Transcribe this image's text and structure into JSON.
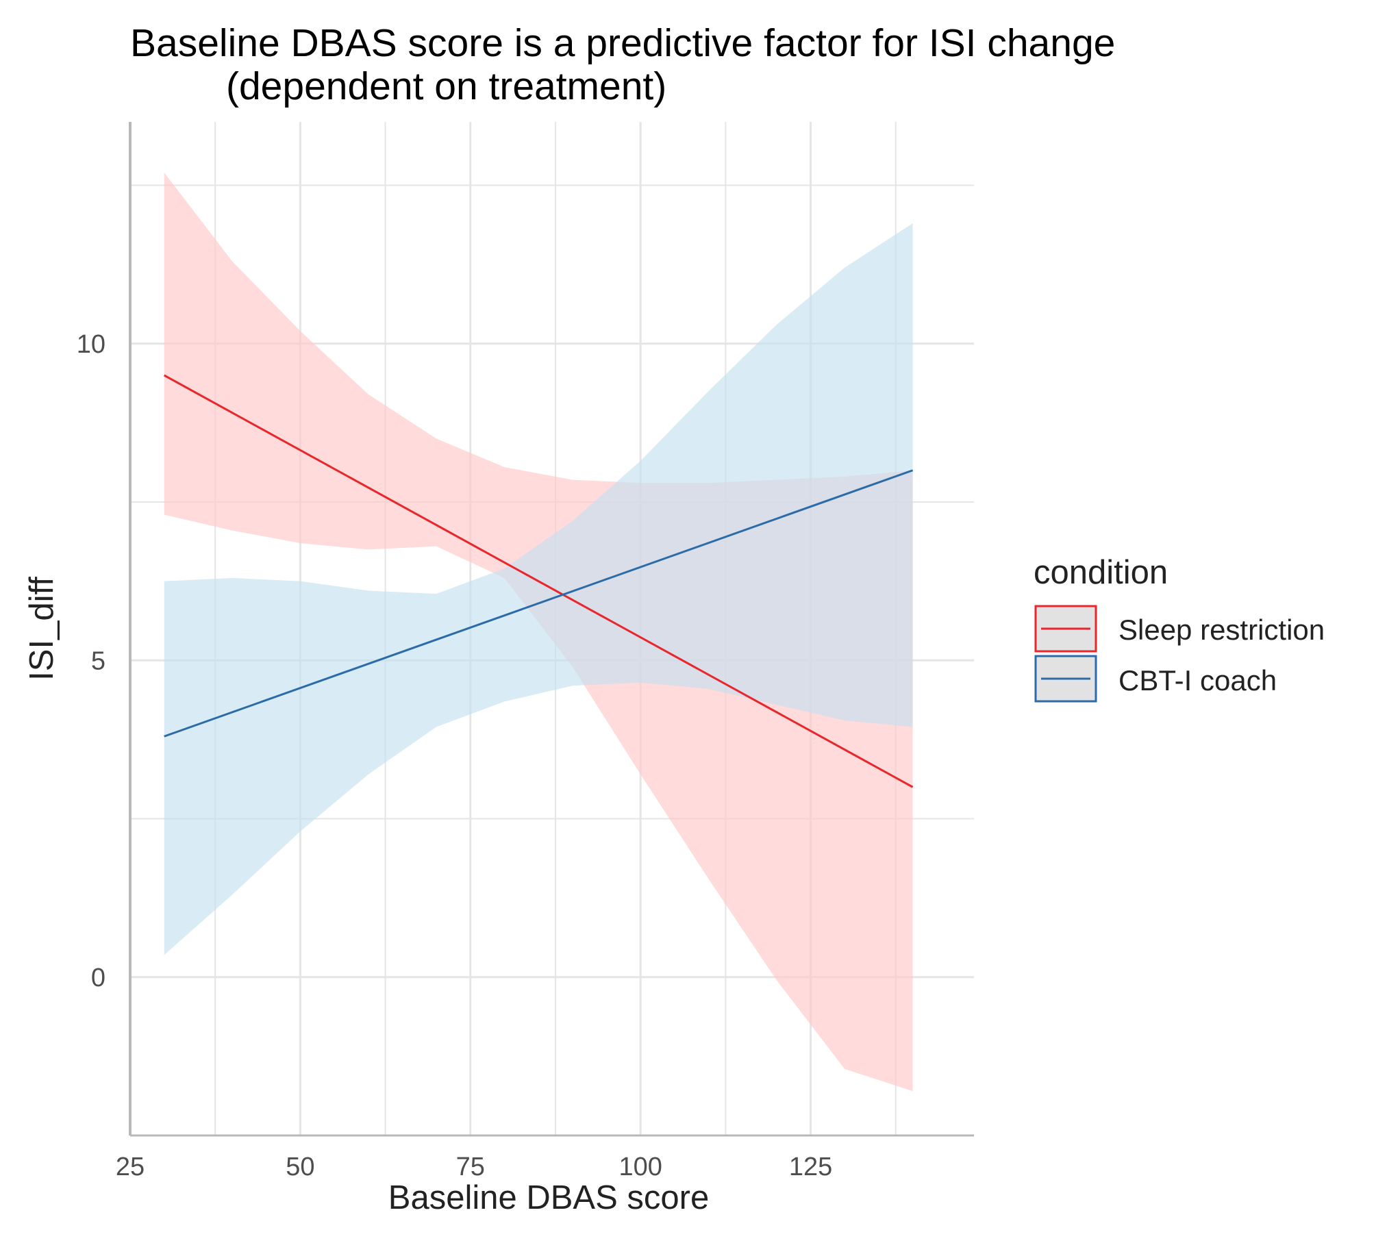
{
  "colors": {
    "sleep_restriction": "#e8262b",
    "sleep_restriction_band": "#ffc8c8",
    "cbt_coach": "#2b6ca8",
    "cbt_coach_band": "#c5e0f0",
    "grid": "#e5e5e5",
    "axis_line": "#b8b8b8",
    "legend_key_bg": "#e2e2e2"
  },
  "chart_data": {
    "type": "line",
    "title_line1": "Baseline DBAS score is a predictive factor for ISI change",
    "title_line2": "(dependent on treatment)",
    "xlabel": "Baseline DBAS score",
    "ylabel": "ISI_diff",
    "xlim": [
      25,
      149
    ],
    "ylim": [
      -2.5,
      13.5
    ],
    "x_ticks": [
      25,
      50,
      75,
      100,
      125
    ],
    "x_tick_labels": [
      "25",
      "50",
      "75",
      "100",
      "125"
    ],
    "x_minor_ticks": [
      37.5,
      62.5,
      87.5,
      112.5,
      137.5
    ],
    "y_ticks": [
      0,
      5,
      10
    ],
    "y_tick_labels": [
      "0",
      "5",
      "10"
    ],
    "y_minor_ticks": [
      -2.5,
      2.5,
      7.5,
      12.5
    ],
    "legend": {
      "title": "condition",
      "position": "right",
      "entries": [
        "Sleep restriction",
        "CBT-I coach"
      ]
    },
    "series": [
      {
        "name": "Sleep restriction",
        "color_key": "sleep_restriction",
        "band_color_key": "sleep_restriction_band",
        "x": [
          30,
          140
        ],
        "fit": [
          9.5,
          3.0
        ],
        "ci_x": [
          30,
          40,
          50,
          60,
          70,
          80,
          90,
          100,
          110,
          120,
          130,
          140
        ],
        "ci_lower": [
          7.3,
          7.05,
          6.85,
          6.75,
          6.8,
          6.3,
          4.9,
          3.2,
          1.55,
          -0.05,
          -1.45,
          -1.8
        ],
        "ci_upper": [
          12.7,
          11.3,
          10.2,
          9.2,
          8.5,
          8.05,
          7.85,
          7.8,
          7.8,
          7.85,
          7.9,
          8.0
        ]
      },
      {
        "name": "CBT-I coach",
        "color_key": "cbt_coach",
        "band_color_key": "cbt_coach_band",
        "x": [
          30,
          140
        ],
        "fit": [
          3.8,
          8.0
        ],
        "ci_x": [
          30,
          40,
          50,
          60,
          70,
          80,
          90,
          100,
          110,
          120,
          130,
          140
        ],
        "ci_lower": [
          0.35,
          1.3,
          2.3,
          3.2,
          3.95,
          4.35,
          4.6,
          4.65,
          4.55,
          4.3,
          4.05,
          3.95
        ],
        "ci_upper": [
          6.25,
          6.3,
          6.25,
          6.1,
          6.05,
          6.45,
          7.2,
          8.15,
          9.25,
          10.3,
          11.2,
          11.9
        ]
      }
    ]
  }
}
